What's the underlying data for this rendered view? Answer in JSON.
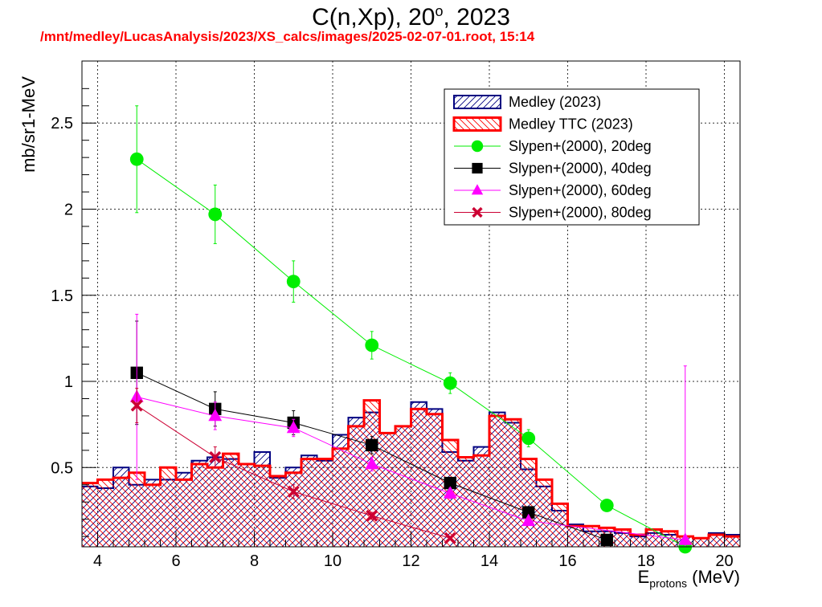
{
  "header": {
    "title": "C(n,Xp), 20",
    "title_sup": "o",
    "title_suffix": ", 2023",
    "path_line": "/mnt/medley/LucasAnalysis/2023/XS_calcs/images/2025-02-07-01.root,  15:14"
  },
  "chart_data": {
    "type": "line",
    "title": "C(n,Xp), 20o, 2023",
    "xlabel_main": "E",
    "xlabel_sub": "protons",
    "xlabel_unit": " (MeV)",
    "ylabel": "mb/sr1-MeV",
    "xlim": [
      3.6,
      20.4
    ],
    "ylim": [
      0.04,
      2.86
    ],
    "x_ticks": [
      4,
      6,
      8,
      10,
      12,
      14,
      16,
      18,
      20
    ],
    "y_ticks": [
      0.5,
      1,
      1.5,
      2,
      2.5
    ],
    "y_tick_labels": [
      "0.5",
      "1",
      "1.5",
      "2",
      "2.5"
    ],
    "grid": true,
    "legend_position": "top-right",
    "histograms": [
      {
        "name": "Medley (2023)",
        "color": "#000080",
        "bin_width": 0.4,
        "start": 3.6,
        "values": [
          0.39,
          0.38,
          0.5,
          0.4,
          0.43,
          0.43,
          0.47,
          0.54,
          0.56,
          0.55,
          0.52,
          0.59,
          0.44,
          0.5,
          0.57,
          0.54,
          0.69,
          0.79,
          0.82,
          0.7,
          0.74,
          0.88,
          0.84,
          0.59,
          0.54,
          0.62,
          0.82,
          0.76,
          0.49,
          0.39,
          0.25,
          0.17,
          0.13,
          0.13,
          0.12,
          0.1,
          0.12,
          0.11,
          0.1,
          0.09,
          0.12,
          0.11
        ]
      },
      {
        "name": "Medley TTC (2023)",
        "color": "#ff0000",
        "bin_width": 0.4,
        "start": 3.6,
        "values": [
          0.41,
          0.43,
          0.44,
          0.47,
          0.4,
          0.5,
          0.43,
          0.52,
          0.5,
          0.58,
          0.52,
          0.51,
          0.45,
          0.47,
          0.55,
          0.55,
          0.61,
          0.74,
          0.89,
          0.7,
          0.74,
          0.84,
          0.81,
          0.66,
          0.56,
          0.57,
          0.8,
          0.78,
          0.55,
          0.43,
          0.29,
          0.16,
          0.16,
          0.15,
          0.14,
          0.11,
          0.14,
          0.13,
          0.1,
          0.09,
          0.11,
          0.1
        ]
      }
    ],
    "series": [
      {
        "name": "Slypen+(2000), 20deg",
        "color": "#00ee00",
        "marker": "circle",
        "x": [
          5,
          7,
          9,
          11,
          13,
          15,
          17,
          19
        ],
        "y": [
          2.29,
          1.97,
          1.58,
          1.21,
          0.99,
          0.67,
          0.28,
          0.04
        ],
        "err": [
          0.31,
          0.17,
          0.12,
          0.08,
          0.06,
          0.05,
          0.02,
          0.02
        ]
      },
      {
        "name": "Slypen+(2000), 40deg",
        "color": "#000000",
        "marker": "square",
        "x": [
          5,
          7,
          9,
          11,
          13,
          15,
          17
        ],
        "y": [
          1.05,
          0.84,
          0.76,
          0.63,
          0.41,
          0.24,
          0.08
        ],
        "err": [
          0.3,
          0.1,
          0.07,
          0.05,
          0.03,
          0.02,
          0.01
        ]
      },
      {
        "name": "Slypen+(2000), 60deg",
        "color": "#ff00ff",
        "marker": "triangle",
        "x": [
          5,
          7,
          9,
          11,
          13,
          15,
          19
        ],
        "y": [
          0.91,
          0.8,
          0.73,
          0.52,
          0.35,
          0.19,
          0.08
        ],
        "err": [
          0.48,
          0.08,
          0.05,
          0.04,
          0.03,
          0.02,
          1.01
        ]
      },
      {
        "name": "Slypen+(2000), 80deg",
        "color": "#cc0033",
        "marker": "cross",
        "x": [
          5,
          7,
          9,
          11,
          13
        ],
        "y": [
          0.86,
          0.56,
          0.36,
          0.22,
          0.09
        ],
        "err": [
          0.1,
          0.06,
          0.04,
          0.02,
          0.01
        ]
      }
    ],
    "legend": [
      {
        "label": "Medley (2023)",
        "kind": "hist",
        "color": "#000080"
      },
      {
        "label": "Medley TTC (2023)",
        "kind": "hist",
        "color": "#ff0000"
      },
      {
        "label": "Slypen+(2000), 20deg",
        "kind": "marker",
        "marker": "circle",
        "color": "#00ee00"
      },
      {
        "label": "Slypen+(2000), 40deg",
        "kind": "marker",
        "marker": "square",
        "color": "#000000"
      },
      {
        "label": "Slypen+(2000), 60deg",
        "kind": "marker",
        "marker": "triangle",
        "color": "#ff00ff"
      },
      {
        "label": "Slypen+(2000), 80deg",
        "kind": "marker",
        "marker": "cross",
        "color": "#cc0033"
      }
    ]
  }
}
